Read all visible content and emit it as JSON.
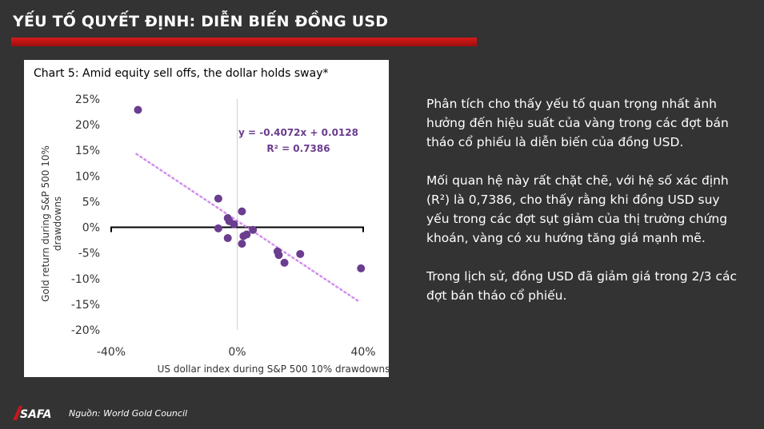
{
  "slide": {
    "title": "YẾU TỐ QUYẾT ĐỊNH: DIỄN BIẾN ĐỒNG USD",
    "paragraphs": [
      "Phân tích cho thấy yếu tố quan trọng nhất ảnh hưởng đến hiệu suất của vàng trong các đợt bán tháo cổ phiếu là diễn biến của đồng USD.",
      "Mối quan hệ này rất chặt chẽ, với hệ số xác định (R²) là 0,7386, cho thấy rằng khi đồng USD suy yếu trong các đợt sụt giảm của thị trường chứng khoán, vàng có xu hướng tăng giá mạnh mẽ.",
      "Trong lịch sử, đồng USD đã giảm giá trong 2/3 các đợt bán tháo cổ phiếu."
    ],
    "source": "Nguồn: World Gold Council",
    "logo_text": "SAFA",
    "colors": {
      "background": "#333333",
      "accent_bar": "#c8161d",
      "point": "#6a3d8f",
      "trendline": "#d38ef0"
    }
  },
  "chart_data": {
    "type": "scatter",
    "title": "Chart 5: Amid equity sell offs, the dollar holds sway*",
    "xlabel": "US dollar index during S&P 500 10% drawdowns",
    "ylabel_lines": [
      "Gold return during S&P 500 10%",
      "drawdowns"
    ],
    "xlim": [
      -0.4,
      0.4
    ],
    "ylim": [
      -0.2,
      0.25
    ],
    "xticks": [
      -0.4,
      0.0,
      0.4
    ],
    "xtick_labels": [
      "-40%",
      "0%",
      "40%"
    ],
    "yticks": [
      0.25,
      0.2,
      0.15,
      0.1,
      0.05,
      0.0,
      -0.05,
      -0.1,
      -0.15,
      -0.2
    ],
    "ytick_labels": [
      "25%",
      "20%",
      "15%",
      "10%",
      "5%",
      "0%",
      "-5%",
      "-10%",
      "-15%",
      "-20%"
    ],
    "points": [
      {
        "x": -0.315,
        "y": 0.229
      },
      {
        "x": -0.06,
        "y": 0.056
      },
      {
        "x": -0.06,
        "y": -0.002
      },
      {
        "x": -0.03,
        "y": 0.018
      },
      {
        "x": -0.025,
        "y": 0.012
      },
      {
        "x": -0.03,
        "y": -0.021
      },
      {
        "x": -0.01,
        "y": 0.006
      },
      {
        "x": 0.015,
        "y": 0.031
      },
      {
        "x": 0.02,
        "y": -0.017
      },
      {
        "x": 0.015,
        "y": -0.032
      },
      {
        "x": 0.03,
        "y": -0.014
      },
      {
        "x": 0.05,
        "y": -0.005
      },
      {
        "x": 0.128,
        "y": -0.047
      },
      {
        "x": 0.132,
        "y": -0.054
      },
      {
        "x": 0.15,
        "y": -0.069
      },
      {
        "x": 0.2,
        "y": -0.052
      },
      {
        "x": 0.393,
        "y": -0.08
      }
    ],
    "trendline": {
      "slope": -0.4072,
      "intercept": 0.0128,
      "x_range": [
        -0.32,
        0.385
      ],
      "equation_label": "y = -0.4072x + 0.0128",
      "r2_label": "R² = 0.7386"
    },
    "grid": false,
    "zero_line": true
  }
}
